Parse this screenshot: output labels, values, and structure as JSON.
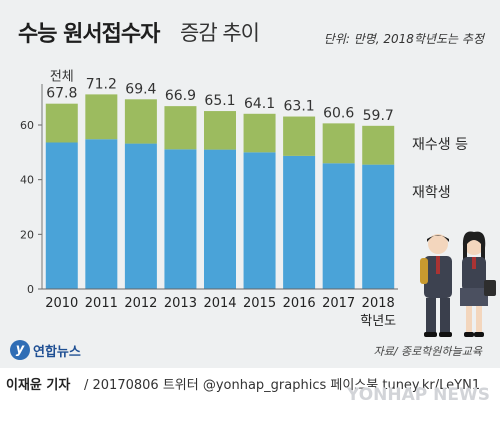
{
  "header": {
    "title_bold": "수능 원서접수자",
    "title_light": "증감 추이",
    "unit_note": "단위: 만명, 2018학년도는 추정"
  },
  "chart_data": {
    "type": "bar",
    "stacked": true,
    "categories": [
      "2010",
      "2011",
      "2012",
      "2013",
      "2014",
      "2015",
      "2016",
      "2017",
      "2018"
    ],
    "x_unit_label": "학년도",
    "total_label": "전체",
    "totals": [
      67.8,
      71.2,
      69.4,
      66.9,
      65.1,
      64.1,
      63.1,
      60.6,
      59.7
    ],
    "series": [
      {
        "name": "재학생",
        "color": "#4aa3d8",
        "values": [
          53.6,
          54.8,
          53.2,
          51.1,
          51.0,
          50.0,
          48.7,
          46.0,
          45.5
        ]
      },
      {
        "name": "재수생 등",
        "color": "#9cbb5f",
        "values": [
          14.2,
          16.4,
          16.2,
          15.8,
          14.1,
          14.1,
          14.4,
          14.6,
          14.2
        ]
      }
    ],
    "yticks": [
      0,
      20,
      40,
      60
    ],
    "ylim": [
      0,
      75
    ],
    "grid": false,
    "legend_placement": "right"
  },
  "footer": {
    "source": "자료/ 종로학원하늘교육",
    "logo_mark": "y",
    "logo_text": "연합뉴스",
    "author": "이재윤 기자",
    "credit": "/ 20170806   트위터 @yonhap_graphics  페이스북 tuney.kr/LeYN1",
    "watermark": "YONHAP NEWS"
  }
}
